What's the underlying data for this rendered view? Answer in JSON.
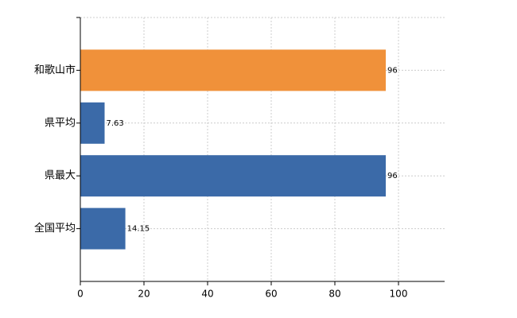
{
  "chart_data": {
    "type": "bar",
    "orientation": "horizontal",
    "categories": [
      "和歌山市",
      "県平均",
      "県最大",
      "全国平均"
    ],
    "values": [
      96,
      7.63,
      96,
      14.15
    ],
    "colors": [
      "#f0913a",
      "#3b6aa8",
      "#3b6aa8",
      "#3b6aa8"
    ],
    "xlim": [
      0,
      114.5
    ],
    "xticks": [
      0,
      20,
      40,
      60,
      80,
      100
    ],
    "grid": true
  }
}
